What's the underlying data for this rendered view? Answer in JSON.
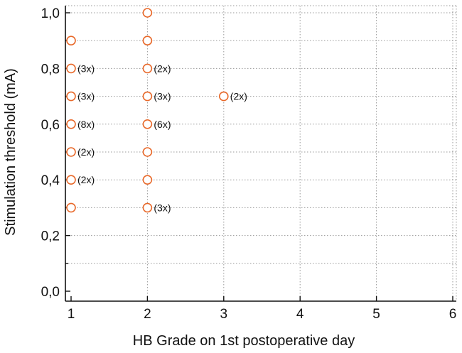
{
  "chart_data": {
    "type": "scatter",
    "xlabel": "HB Grade on 1st postoperative day",
    "ylabel": "Stimulation threshold (mA)",
    "xlim": [
      1,
      6
    ],
    "ylim": [
      0,
      1.0
    ],
    "x_ticks": [
      "1",
      "2",
      "3",
      "4",
      "5",
      "6"
    ],
    "y_ticks": [
      "0,0",
      "0,2",
      "0,4",
      "0,6",
      "0,8",
      "1,0"
    ],
    "grid": true,
    "marker_color": "#e8692a",
    "points": [
      {
        "x": 1,
        "y": 0.9,
        "label": ""
      },
      {
        "x": 1,
        "y": 0.8,
        "label": "(3x)"
      },
      {
        "x": 1,
        "y": 0.7,
        "label": "(3x)"
      },
      {
        "x": 1,
        "y": 0.6,
        "label": "(8x)"
      },
      {
        "x": 1,
        "y": 0.5,
        "label": "(2x)"
      },
      {
        "x": 1,
        "y": 0.4,
        "label": "(2x)"
      },
      {
        "x": 1,
        "y": 0.3,
        "label": ""
      },
      {
        "x": 2,
        "y": 1.0,
        "label": ""
      },
      {
        "x": 2,
        "y": 0.9,
        "label": ""
      },
      {
        "x": 2,
        "y": 0.8,
        "label": "(2x)"
      },
      {
        "x": 2,
        "y": 0.7,
        "label": "(3x)"
      },
      {
        "x": 2,
        "y": 0.6,
        "label": "(6x)"
      },
      {
        "x": 2,
        "y": 0.5,
        "label": ""
      },
      {
        "x": 2,
        "y": 0.4,
        "label": ""
      },
      {
        "x": 2,
        "y": 0.3,
        "label": "(3x)"
      },
      {
        "x": 3,
        "y": 0.7,
        "label": "(2x)"
      }
    ]
  }
}
